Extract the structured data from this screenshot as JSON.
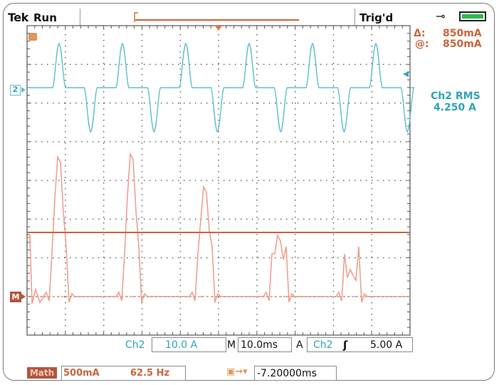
{
  "header": {
    "brand": "Tek",
    "state": "Run",
    "trigger_status": "Trig'd"
  },
  "cursor_readout": {
    "delta_label": "Δ:",
    "delta_value": "850mA",
    "at_label": "@:",
    "at_value": "850mA"
  },
  "measurement": {
    "label": "Ch2 RMS",
    "value": "4.250 A"
  },
  "markers": {
    "ch2": "2",
    "math": "M"
  },
  "bottom_row1": {
    "ch2_label": "Ch2",
    "ch2_scale": "10.0 A",
    "time_prefix": "M",
    "timebase": "10.0ms",
    "trig_prefix": "A",
    "trig_channel": "Ch2",
    "trig_slope": "ʃ",
    "trig_level": "5.00 A"
  },
  "bottom_row2": {
    "math_label": "Math",
    "math_scale": "500mA",
    "math_freq": "62.5 Hz",
    "trig_offset": "-7.20000ms"
  },
  "colors": {
    "ch2": "#5fbfd0",
    "math": "#e8907a",
    "cursor": "#c9653e",
    "accent": "#c9653e",
    "battery": "#2db84a"
  }
}
